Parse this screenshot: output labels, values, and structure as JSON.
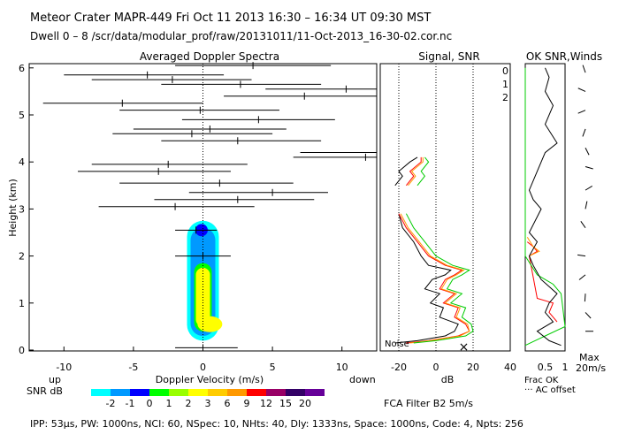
{
  "header": {
    "title": "Meteor Crater   MAPR-449   Fri Oct 11 2013 16:30 – 16:34 UT 09:30 MST",
    "dwell_line": "Dwell   0 –   8    /scr/data/modular_prof/raw/20131011/11-Oct-2013_16-30-02.cor.nc"
  },
  "panels": {
    "spectra_title": "Averaged Doppler Spectra",
    "signal_title": "Signal, SNR",
    "ok_title": "OK SNR,Winds"
  },
  "legend_ok": {
    "zero": "0",
    "one": "1",
    "two": "2",
    "color_zero": "#ff0000",
    "color_one": "#ff9900",
    "color_two": "#00cc00"
  },
  "chart_data": {
    "type": "scatter",
    "title": "Averaged Doppler Spectra",
    "xlabel": "Doppler Velocity (m/s)",
    "ylabel": "Height (km)",
    "xlim": [
      -12.5,
      12.5
    ],
    "ylim": [
      0,
      6.1
    ],
    "x_ticks": [
      "-10",
      "-5",
      "0",
      "5",
      "10"
    ],
    "y_ticks": [
      "0",
      "1",
      "2",
      "3",
      "4",
      "5",
      "6"
    ],
    "x_left_label": "up",
    "x_right_label": "down",
    "mean_velocity_points": [
      {
        "height": 0.05,
        "v": 0,
        "lo": -2,
        "hi": 2.5
      },
      {
        "height": 2.0,
        "v": 0,
        "lo": -2,
        "hi": 2
      },
      {
        "height": 2.55,
        "v": -0.5,
        "lo": -2,
        "hi": 1
      },
      {
        "height": 3.05,
        "v": -2,
        "lo": -7.5,
        "hi": 3.7
      },
      {
        "height": 3.2,
        "v": 2.5,
        "lo": -3.5,
        "hi": 8
      },
      {
        "height": 3.35,
        "v": 5,
        "lo": -1,
        "hi": 9
      },
      {
        "height": 3.55,
        "v": 1.2,
        "lo": -6,
        "hi": 6.5
      },
      {
        "height": 3.8,
        "v": -3.2,
        "lo": -9,
        "hi": 2
      },
      {
        "height": 3.95,
        "v": -2.5,
        "lo": -8,
        "hi": 3.2
      },
      {
        "height": 4.1,
        "v": 11.7,
        "lo": 6.5,
        "hi": 14
      },
      {
        "height": 4.2,
        "v": 12.5,
        "lo": 7,
        "hi": 14
      },
      {
        "height": 4.45,
        "v": 2.5,
        "lo": -3,
        "hi": 8.5
      },
      {
        "height": 4.6,
        "v": -0.8,
        "lo": -6.5,
        "hi": 5
      },
      {
        "height": 4.7,
        "v": 0.5,
        "lo": -5,
        "hi": 6
      },
      {
        "height": 4.9,
        "v": 4,
        "lo": -1.5,
        "hi": 9.5
      },
      {
        "height": 5.1,
        "v": -0.2,
        "lo": -6,
        "hi": 5.5
      },
      {
        "height": 5.25,
        "v": -5.8,
        "lo": -11.5,
        "hi": 0
      },
      {
        "height": 5.4,
        "v": 7.3,
        "lo": 1.5,
        "hi": 14
      },
      {
        "height": 5.55,
        "v": 10.3,
        "lo": 4.5,
        "hi": 14
      },
      {
        "height": 5.65,
        "v": 2.7,
        "lo": -3,
        "hi": 8.5
      },
      {
        "height": 5.75,
        "v": -2.2,
        "lo": -8,
        "hi": 3.5
      },
      {
        "height": 5.85,
        "v": -4,
        "lo": -10,
        "hi": 1.5
      },
      {
        "height": 6.05,
        "v": 3.6,
        "lo": -2,
        "hi": 9.2
      }
    ],
    "signal_axis": {
      "xlim": [
        -30,
        40
      ],
      "x_ticks": [
        "-20",
        "0",
        "20",
        "40"
      ],
      "xlabel": "dB",
      "noise_label": "Noise"
    },
    "signal_series": [
      {
        "name": "Signal",
        "color": "#000000",
        "points": [
          [
            -22,
            0.15
          ],
          [
            -10,
            0.2
          ],
          [
            5,
            0.3
          ],
          [
            10,
            0.4
          ],
          [
            12,
            0.55
          ],
          [
            2,
            0.7
          ],
          [
            4,
            0.9
          ],
          [
            -3,
            1.0
          ],
          [
            2,
            1.2
          ],
          [
            -6,
            1.3
          ],
          [
            -2,
            1.5
          ],
          [
            5,
            1.6
          ],
          [
            8,
            1.7
          ],
          [
            -4,
            1.8
          ],
          [
            -8,
            2.0
          ],
          [
            -12,
            2.3
          ],
          [
            -18,
            2.6
          ],
          [
            -20,
            2.9
          ],
          [
            null,
            3.1
          ],
          [
            -22,
            3.5
          ],
          [
            -18,
            3.7
          ],
          [
            -20,
            3.8
          ],
          [
            -14,
            4.0
          ],
          [
            -10,
            4.1
          ]
        ]
      },
      {
        "name": "SNR-0",
        "color": "#ff0000",
        "points": [
          [
            -16,
            0.15
          ],
          [
            -4,
            0.2
          ],
          [
            12,
            0.3
          ],
          [
            18,
            0.4
          ],
          [
            16,
            0.55
          ],
          [
            10,
            0.7
          ],
          [
            12,
            0.9
          ],
          [
            4,
            1.0
          ],
          [
            10,
            1.2
          ],
          [
            2,
            1.3
          ],
          [
            5,
            1.5
          ],
          [
            10,
            1.6
          ],
          [
            14,
            1.7
          ],
          [
            5,
            1.8
          ],
          [
            -4,
            2.0
          ],
          [
            -10,
            2.3
          ],
          [
            -16,
            2.6
          ],
          [
            -20,
            2.9
          ],
          [
            null,
            3.1
          ],
          [
            -16,
            3.5
          ],
          [
            -12,
            3.7
          ],
          [
            -14,
            3.8
          ],
          [
            -8,
            4.0
          ],
          [
            -8,
            4.1
          ]
        ]
      },
      {
        "name": "SNR-1",
        "color": "#ff9900",
        "points": [
          [
            -14,
            0.15
          ],
          [
            -3,
            0.2
          ],
          [
            13,
            0.3
          ],
          [
            18,
            0.4
          ],
          [
            17,
            0.55
          ],
          [
            11,
            0.7
          ],
          [
            13,
            0.9
          ],
          [
            5,
            1.0
          ],
          [
            11,
            1.2
          ],
          [
            3,
            1.3
          ],
          [
            6,
            1.5
          ],
          [
            11,
            1.6
          ],
          [
            15,
            1.7
          ],
          [
            6,
            1.8
          ],
          [
            -3,
            2.0
          ],
          [
            -9,
            2.3
          ],
          [
            -15,
            2.6
          ],
          [
            -19,
            2.9
          ],
          [
            null,
            3.1
          ],
          [
            -15,
            3.5
          ],
          [
            -11,
            3.7
          ],
          [
            -13,
            3.8
          ],
          [
            -7,
            4.0
          ],
          [
            -7,
            4.1
          ]
        ]
      },
      {
        "name": "SNR-2",
        "color": "#00cc00",
        "points": [
          [
            -12,
            0.15
          ],
          [
            0,
            0.2
          ],
          [
            16,
            0.3
          ],
          [
            20,
            0.4
          ],
          [
            19,
            0.55
          ],
          [
            14,
            0.7
          ],
          [
            16,
            0.9
          ],
          [
            8,
            1.0
          ],
          [
            14,
            1.2
          ],
          [
            6,
            1.3
          ],
          [
            9,
            1.5
          ],
          [
            14,
            1.6
          ],
          [
            18,
            1.7
          ],
          [
            9,
            1.8
          ],
          [
            0,
            2.0
          ],
          [
            -6,
            2.3
          ],
          [
            -12,
            2.6
          ],
          [
            -16,
            2.9
          ],
          [
            null,
            3.1
          ],
          [
            -10,
            3.5
          ],
          [
            -6,
            3.7
          ],
          [
            -8,
            3.8
          ],
          [
            -4,
            4.0
          ],
          [
            -6,
            4.1
          ]
        ]
      }
    ],
    "ok_axis": {
      "xlim": [
        0,
        1
      ],
      "x_ticks": [
        "0.5",
        "1"
      ],
      "label_frac": "Frac OK",
      "label_offset": "··· AC offset"
    },
    "ok_series": [
      {
        "name": "Frac-0",
        "color": "#ff0000",
        "points": [
          [
            0.05,
            2.3
          ],
          [
            0.2,
            2.2
          ],
          [
            0.3,
            2.1
          ],
          [
            0.1,
            2.0
          ],
          [
            0.3,
            1.1
          ],
          [
            0.7,
            1.0
          ],
          [
            0.6,
            0.8
          ],
          [
            0.8,
            0.6
          ]
        ]
      },
      {
        "name": "Frac-1",
        "color": "#ff9900",
        "points": [
          [
            0.05,
            2.4
          ],
          [
            0.2,
            2.2
          ],
          [
            0.35,
            2.1
          ],
          [
            0.1,
            2.0
          ]
        ]
      },
      {
        "name": "Frac-2",
        "color": "#00cc00",
        "points": [
          [
            0.0,
            6.0
          ],
          [
            0.0,
            2.0
          ],
          [
            0.3,
            1.6
          ],
          [
            0.5,
            1.5
          ],
          [
            0.7,
            1.4
          ],
          [
            0.9,
            1.2
          ],
          [
            1.0,
            0.5
          ],
          [
            0.5,
            0.3
          ],
          [
            0.0,
            0.1
          ]
        ]
      },
      {
        "name": "Frac-winds",
        "color": "#000000",
        "points": [
          [
            0.5,
            6.0
          ],
          [
            0.6,
            5.8
          ],
          [
            0.5,
            5.5
          ],
          [
            0.7,
            5.2
          ],
          [
            0.5,
            4.8
          ],
          [
            0.8,
            4.4
          ],
          [
            0.5,
            4.2
          ],
          [
            0.3,
            3.8
          ],
          [
            0.1,
            3.4
          ],
          [
            0.2,
            3.2
          ],
          [
            0.4,
            3.0
          ],
          [
            0.1,
            2.5
          ],
          [
            0.3,
            2.3
          ],
          [
            0.1,
            2.0
          ],
          [
            0.2,
            1.8
          ],
          [
            0.4,
            1.5
          ],
          [
            0.8,
            1.2
          ],
          [
            0.6,
            1.0
          ],
          [
            0.5,
            0.8
          ],
          [
            0.7,
            0.6
          ],
          [
            0.3,
            0.4
          ],
          [
            0.6,
            0.2
          ],
          [
            0.9,
            0.1
          ]
        ]
      }
    ],
    "winds": {
      "max_label": "Max",
      "speed_label": "20m/s"
    },
    "snr_legend": {
      "label": "SNR dB",
      "levels": [
        "-2",
        "-1",
        "0",
        "1",
        "2",
        "3",
        "6",
        "9",
        "12",
        "15",
        "20"
      ],
      "colors": [
        "#00ffff",
        "#0099ff",
        "#0000ff",
        "#00ff00",
        "#99ff00",
        "#ffff00",
        "#ffcc00",
        "#ff9900",
        "#ff0000",
        "#990066",
        "#330066",
        "#660099"
      ]
    }
  },
  "footer": {
    "filter": "FCA Filter B2   5m/s",
    "params": "IPP: 53μs,  PW: 1000ns,  NCI: 60,  NSpec: 10, NHts: 40,  Dly: 1333ns,  Space: 1000ns,  Code: 4,  Npts: 256"
  }
}
